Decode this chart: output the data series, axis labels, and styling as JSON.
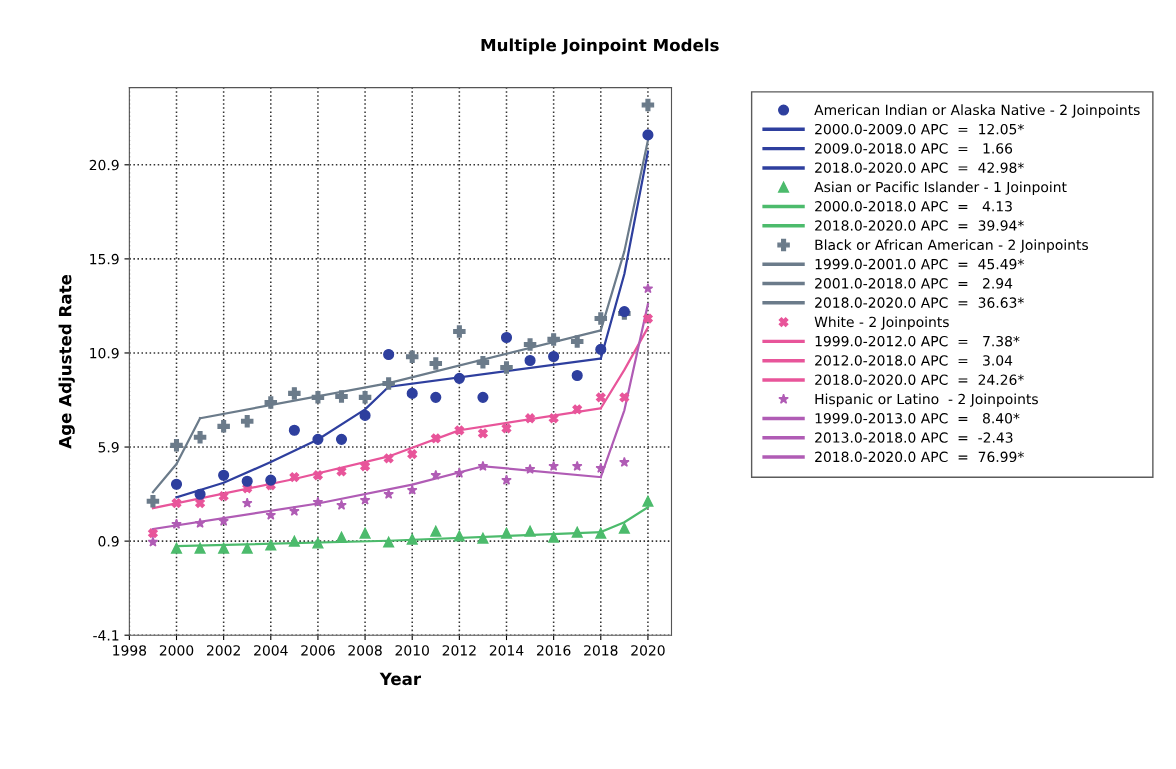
{
  "chart_data": {
    "type": "scatter",
    "title": "Multiple Joinpoint Models",
    "xlabel": "Year",
    "ylabel": "Age Adjusted Rate",
    "xlim": [
      1998,
      2021
    ],
    "xticks": [
      1998,
      2000,
      2002,
      2004,
      2006,
      2008,
      2010,
      2012,
      2014,
      2016,
      2018,
      2020
    ],
    "ylim": [
      -4.1,
      25
    ],
    "yticks": [
      -4.1,
      0.9,
      5.9,
      10.9,
      15.9,
      20.9
    ],
    "grid": true,
    "legend": "right",
    "series": [
      {
        "name": "American Indian or Alaska Native - 2 Joinpoints",
        "marker": "circle",
        "color": "#2e3f9e",
        "x": [
          2000,
          2001,
          2002,
          2003,
          2004,
          2005,
          2006,
          2007,
          2008,
          2009,
          2010,
          2011,
          2012,
          2013,
          2014,
          2015,
          2016,
          2017,
          2018,
          2019,
          2020
        ],
        "values": [
          3.92,
          3.39,
          4.4,
          4.08,
          4.14,
          6.79,
          6.31,
          6.31,
          7.58,
          10.82,
          8.75,
          8.54,
          9.55,
          8.54,
          11.72,
          10.5,
          10.71,
          9.7,
          11.09,
          13.1,
          22.49
        ]
      },
      {
        "name": "2000.0-2009.0 APC  =  12.05*",
        "type": "line",
        "color": "#2e3f9e",
        "x": [
          2000,
          2002,
          2004,
          2006,
          2008,
          2009
        ],
        "values": [
          3.23,
          4.0,
          5.1,
          6.3,
          7.9,
          9.1
        ]
      },
      {
        "name": "2009.0-2018.0 APC  =   1.66",
        "type": "line",
        "color": "#2e3f9e",
        "x": [
          2009,
          2018
        ],
        "values": [
          9.1,
          10.6
        ]
      },
      {
        "name": "2018.0-2020.0 APC  =  42.98*",
        "type": "line",
        "color": "#2e3f9e",
        "x": [
          2018,
          2019,
          2020
        ],
        "values": [
          10.6,
          15.1,
          21.6
        ]
      },
      {
        "name": "Asian or Pacific Islander - 1 Joinpoint",
        "marker": "triangle",
        "color": "#4cbb6c",
        "x": [
          2000,
          2001,
          2002,
          2003,
          2004,
          2005,
          2006,
          2007,
          2008,
          2009,
          2010,
          2011,
          2012,
          2013,
          2014,
          2015,
          2016,
          2017,
          2018,
          2019,
          2020
        ],
        "values": [
          0.53,
          0.53,
          0.53,
          0.53,
          0.69,
          0.9,
          0.8,
          1.11,
          1.32,
          0.85,
          1.0,
          1.43,
          1.17,
          1.06,
          1.32,
          1.43,
          1.11,
          1.38,
          1.32,
          1.59,
          3.02
        ]
      },
      {
        "name": "2000.0-2018.0 APC  =   4.13",
        "type": "line",
        "color": "#4cbb6c",
        "x": [
          2000,
          2009,
          2018
        ],
        "values": [
          0.63,
          0.92,
          1.38
        ]
      },
      {
        "name": "2018.0-2020.0 APC  =  39.94*",
        "type": "line",
        "color": "#4cbb6c",
        "x": [
          2018,
          2019,
          2020
        ],
        "values": [
          1.38,
          1.9,
          2.7
        ]
      },
      {
        "name": "Black or African American - 2 Joinpoints",
        "marker": "cross",
        "color": "#6b7b8a",
        "x": [
          1999,
          2000,
          2001,
          2002,
          2003,
          2004,
          2005,
          2006,
          2007,
          2008,
          2009,
          2010,
          2011,
          2012,
          2013,
          2014,
          2015,
          2016,
          2017,
          2018,
          2019,
          2020
        ],
        "values": [
          3.02,
          5.99,
          6.42,
          7.0,
          7.27,
          8.27,
          8.75,
          8.54,
          8.59,
          8.54,
          9.28,
          10.7,
          10.34,
          12.04,
          10.4,
          10.13,
          11.35,
          11.62,
          11.51,
          12.73,
          13.0,
          24.08
        ]
      },
      {
        "name": "1999.0-2001.0 APC  =  45.49*",
        "type": "line",
        "color": "#6b7b8a",
        "x": [
          1999,
          2000,
          2001
        ],
        "values": [
          3.5,
          5.0,
          7.43
        ]
      },
      {
        "name": "2001.0-2018.0 APC  =   2.94",
        "type": "line",
        "color": "#6b7b8a",
        "x": [
          2001,
          2009,
          2018
        ],
        "values": [
          7.43,
          9.3,
          12.1
        ]
      },
      {
        "name": "2018.0-2020.0 APC  =  36.63*",
        "type": "line",
        "color": "#6b7b8a",
        "x": [
          2018,
          2019,
          2020
        ],
        "values": [
          12.1,
          16.3,
          22.2
        ]
      },
      {
        "name": "White - 2 Joinpoints",
        "marker": "x",
        "color": "#e8559a",
        "x": [
          1999,
          2000,
          2001,
          2002,
          2003,
          2004,
          2005,
          2006,
          2007,
          2008,
          2009,
          2010,
          2011,
          2012,
          2013,
          2014,
          2015,
          2016,
          2017,
          2018,
          2019,
          2020
        ],
        "values": [
          1.32,
          2.92,
          2.92,
          3.29,
          3.71,
          3.87,
          4.3,
          4.4,
          4.61,
          4.88,
          5.3,
          5.52,
          6.36,
          6.79,
          6.63,
          6.89,
          7.43,
          7.43,
          7.9,
          8.54,
          8.54,
          12.73
        ]
      },
      {
        "name": "1999.0-2012.0 APC  =   7.38*",
        "type": "line",
        "color": "#e8559a",
        "x": [
          1999,
          2005,
          2009,
          2012
        ],
        "values": [
          2.65,
          4.2,
          5.4,
          6.79
        ]
      },
      {
        "name": "2012.0-2018.0 APC  =   3.04",
        "type": "line",
        "color": "#e8559a",
        "x": [
          2012,
          2018
        ],
        "values": [
          6.79,
          7.96
        ]
      },
      {
        "name": "2018.0-2020.0 APC  =  24.26*",
        "type": "line",
        "color": "#e8559a",
        "x": [
          2018,
          2019,
          2020
        ],
        "values": [
          7.96,
          10.0,
          12.25
        ]
      },
      {
        "name": "Hispanic or Latino  - 2 Joinpoints",
        "marker": "star",
        "color": "#b05cb5",
        "x": [
          1999,
          2000,
          2001,
          2002,
          2003,
          2004,
          2005,
          2006,
          2007,
          2008,
          2009,
          2010,
          2011,
          2012,
          2013,
          2014,
          2015,
          2016,
          2017,
          2018,
          2019,
          2020
        ],
        "values": [
          0.85,
          1.8,
          1.85,
          1.96,
          2.92,
          2.28,
          2.49,
          2.97,
          2.81,
          3.08,
          3.39,
          3.61,
          4.4,
          4.51,
          4.88,
          4.14,
          4.72,
          4.88,
          4.88,
          4.77,
          5.09,
          14.32
        ]
      },
      {
        "name": "1999.0-2013.0 APC  =   8.40*",
        "type": "line",
        "color": "#b05cb5",
        "x": [
          1999,
          2006,
          2010,
          2013
        ],
        "values": [
          1.54,
          2.9,
          3.9,
          4.88
        ]
      },
      {
        "name": "2013.0-2018.0 APC  =  -2.43",
        "type": "line",
        "color": "#b05cb5",
        "x": [
          2013,
          2018
        ],
        "values": [
          4.88,
          4.3
        ]
      },
      {
        "name": "2018.0-2020.0 APC  =  76.99*",
        "type": "line",
        "color": "#b05cb5",
        "x": [
          2018,
          2019,
          2020
        ],
        "values": [
          4.3,
          7.85,
          13.5
        ]
      }
    ]
  }
}
